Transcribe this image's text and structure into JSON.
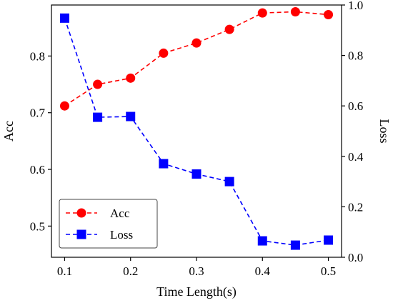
{
  "chart_data": {
    "type": "line",
    "xlabel": "Time Length(s)",
    "ylabel_left": "Acc",
    "ylabel_right": "Loss",
    "x": [
      0.1,
      0.15,
      0.2,
      0.25,
      0.3,
      0.35,
      0.4,
      0.45,
      0.5
    ],
    "x_ticks": [
      0.1,
      0.2,
      0.3,
      0.4,
      0.5
    ],
    "x_tick_labels": [
      "0.1",
      "0.2",
      "0.3",
      "0.4",
      "0.5"
    ],
    "xlim": [
      0.08,
      0.52
    ],
    "y_left_ticks": [
      0.5,
      0.6,
      0.7,
      0.8
    ],
    "y_left_tick_labels": [
      "0.5",
      "0.6",
      "0.7",
      "0.8"
    ],
    "ylim_left": [
      0.445,
      0.89
    ],
    "y_right_ticks": [
      0.0,
      0.2,
      0.4,
      0.6,
      0.8,
      1.0
    ],
    "y_right_tick_labels": [
      "0.0",
      "0.2",
      "0.4",
      "0.6",
      "0.8",
      "1.0"
    ],
    "ylim_right": [
      0.0,
      1.0
    ],
    "grid": false,
    "legend_position": "lower-left",
    "series": [
      {
        "name": "Acc",
        "axis": "left",
        "color": "#ff0000",
        "marker": "circle",
        "line_style": "dashed",
        "values": [
          0.712,
          0.75,
          0.761,
          0.805,
          0.823,
          0.847,
          0.876,
          0.878,
          0.873
        ]
      },
      {
        "name": "Loss",
        "axis": "right",
        "color": "#0000ff",
        "marker": "square",
        "line_style": "dashed",
        "values": [
          0.948,
          0.555,
          0.558,
          0.371,
          0.33,
          0.3,
          0.065,
          0.048,
          0.068
        ]
      }
    ]
  }
}
